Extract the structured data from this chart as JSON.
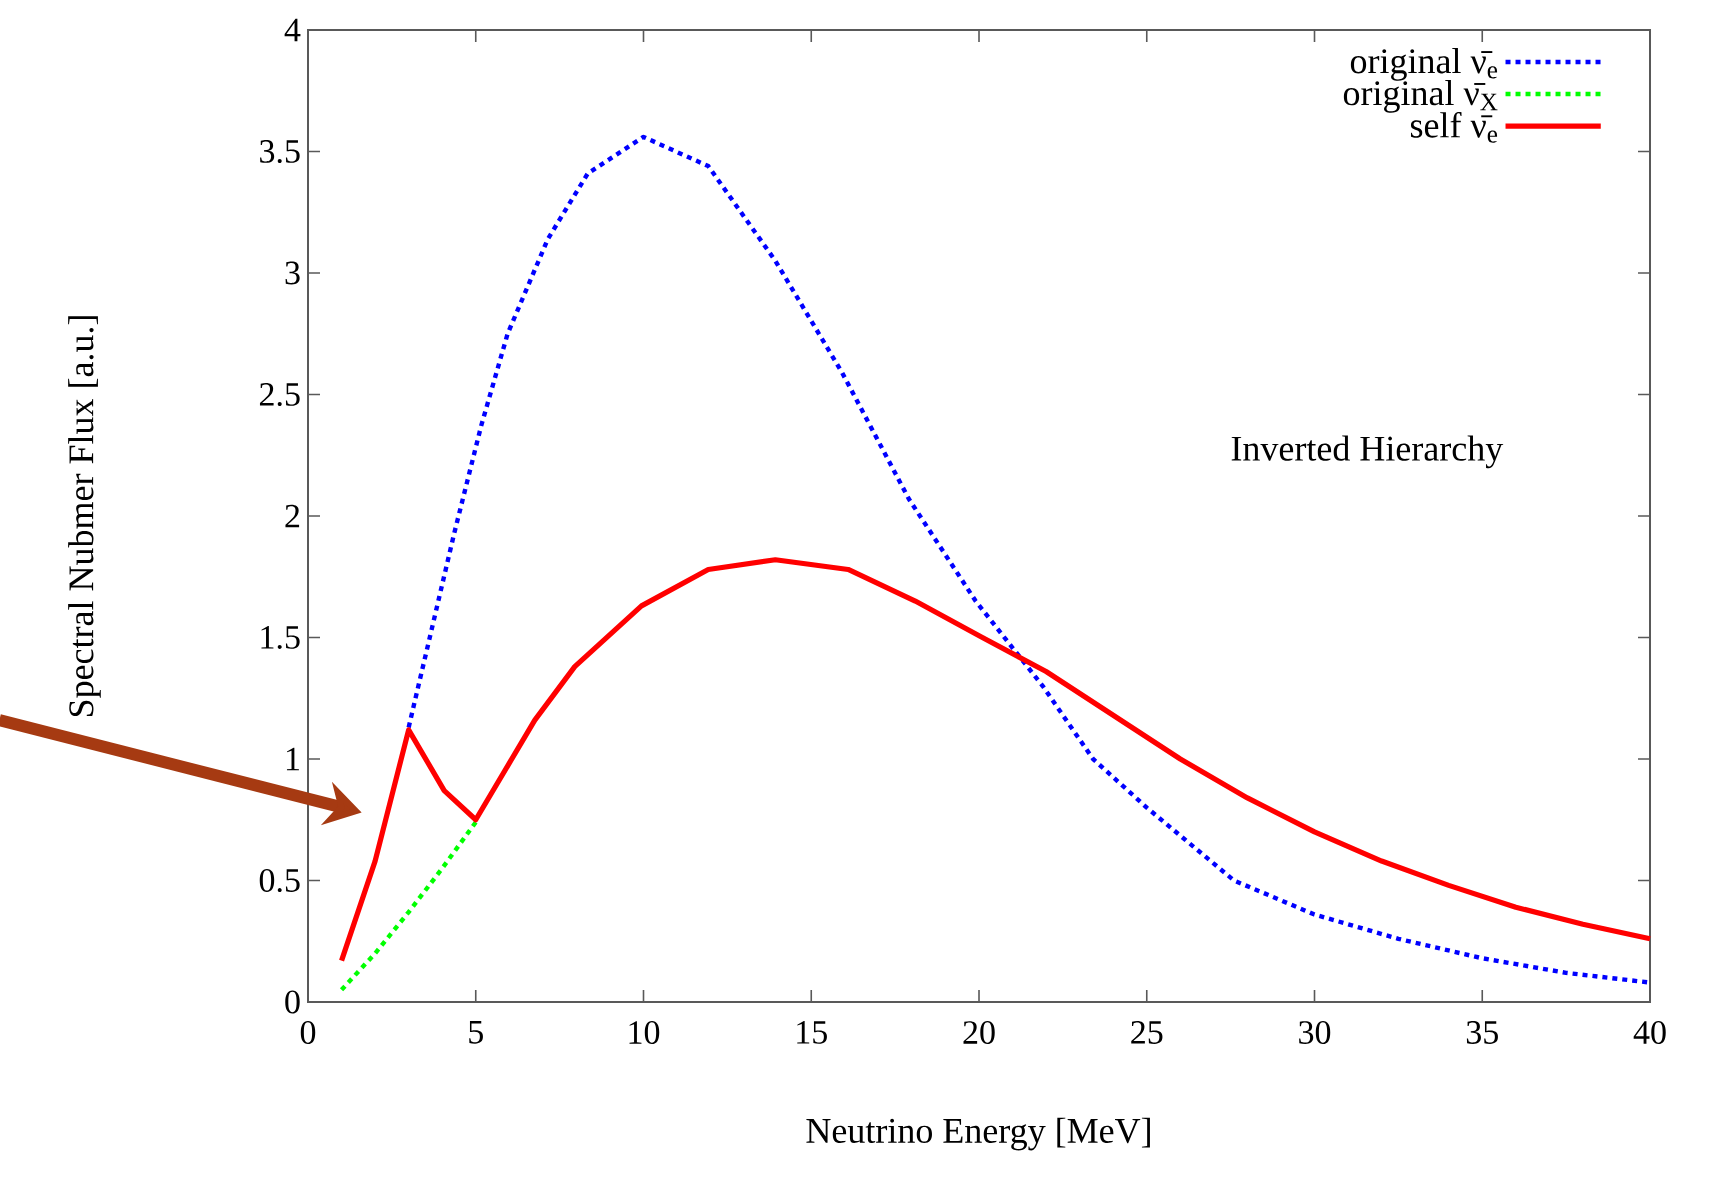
{
  "chart_data": {
    "type": "line",
    "xlabel": "Neutrino Energy [MeV]",
    "ylabel": "Spectral Nubmer Flux [a.u.]",
    "annotations": [
      "Inverted Hierarchy"
    ],
    "xlim": [
      0,
      40
    ],
    "xticks": [
      0,
      5,
      10,
      15,
      20,
      25,
      30,
      35,
      40
    ],
    "ylim": [
      0,
      4
    ],
    "yticks": [
      0,
      0.5,
      1,
      1.5,
      2,
      2.5,
      3,
      3.5,
      4
    ],
    "grid": false,
    "legend": "top right",
    "marker": "none",
    "series": [
      {
        "name": "original ν̄$_{e}$",
        "color": "#0000ff",
        "line_style": "dotted",
        "x": [
          3,
          4.36,
          5.16,
          5.95,
          7.15,
          8.34,
          10,
          11.93,
          13.93,
          15.92,
          17.91,
          19.9,
          21.9,
          23.4,
          25,
          27.6,
          30,
          32.5,
          35,
          37.5,
          40
        ],
        "values": [
          1.13,
          1.93,
          2.37,
          2.75,
          3.14,
          3.41,
          3.56,
          3.44,
          3.05,
          2.59,
          2.07,
          1.65,
          1.3,
          1.0,
          0.8,
          0.5,
          0.36,
          0.26,
          0.18,
          0.12,
          0.08
        ]
      },
      {
        "name": "original ν̄$_{X}$",
        "color": "#00ff00",
        "line_style": "dotted",
        "x": [
          1,
          2,
          3,
          4,
          5
        ],
        "values": [
          0.05,
          0.2,
          0.37,
          0.55,
          0.74
        ]
      },
      {
        "name": "self  ν̄$_{e}$",
        "color": "#ff0000",
        "line_style": "solid",
        "x": [
          1,
          2,
          3,
          4.06,
          5,
          6.76,
          7.95,
          9.94,
          11.93,
          13.93,
          16.1,
          18.1,
          20.1,
          22,
          24,
          26,
          28,
          30,
          32,
          34,
          36,
          38,
          40
        ],
        "values": [
          0.17,
          0.58,
          1.12,
          0.87,
          0.75,
          1.16,
          1.38,
          1.63,
          1.78,
          1.82,
          1.78,
          1.65,
          1.5,
          1.36,
          1.18,
          1.0,
          0.84,
          0.7,
          0.58,
          0.48,
          0.39,
          0.32,
          0.26
        ]
      }
    ]
  }
}
